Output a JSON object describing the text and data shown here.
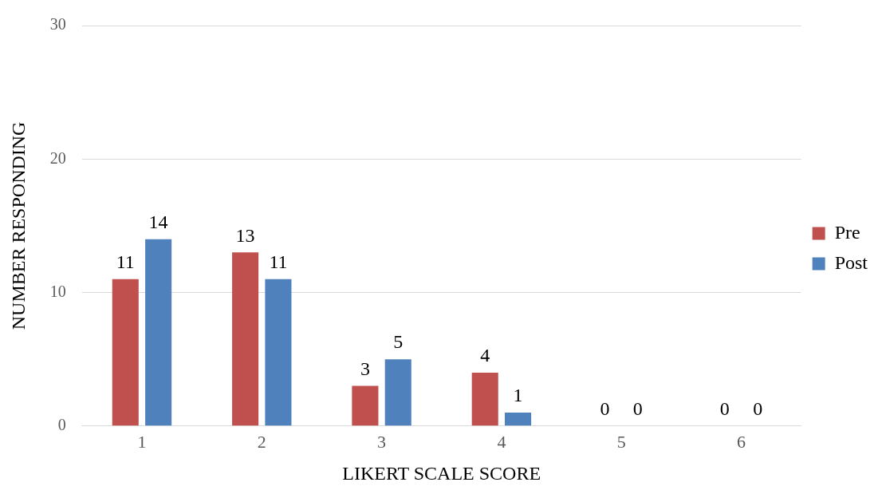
{
  "chart_data": {
    "type": "bar",
    "xlabel": "LIKERT SCALE SCORE",
    "ylabel": "NUMBER RESPONDING",
    "categories": [
      "1",
      "2",
      "3",
      "4",
      "5",
      "6"
    ],
    "series": [
      {
        "name": "Pre",
        "color": "#c0504d",
        "values": [
          11,
          13,
          3,
          4,
          0,
          0
        ]
      },
      {
        "name": "Post",
        "color": "#4f81bd",
        "values": [
          14,
          11,
          5,
          1,
          0,
          0
        ]
      }
    ],
    "ylim": [
      0,
      30
    ],
    "yticks": [
      0,
      10,
      20,
      30
    ],
    "grid": "y",
    "legend": "right",
    "data_labels": true
  }
}
